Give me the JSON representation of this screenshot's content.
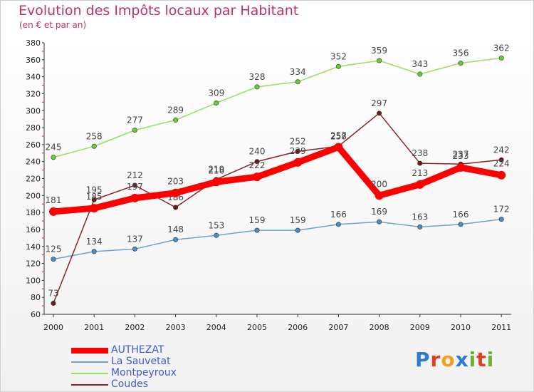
{
  "header": {
    "title": "Evolution des Impôts locaux par Habitant",
    "subtitle": "(en € et par an)"
  },
  "logo": {
    "text": "Proxiti",
    "colors": [
      "#2f7bd0",
      "#e04020",
      "#f0a020",
      "#2f7bd0",
      "#70b030",
      "#e04020",
      "#70b030"
    ]
  },
  "chart_data": {
    "type": "line",
    "title": "Evolution des Impôts locaux par Habitant",
    "subtitle": "(en € et par an)",
    "xlabel": "",
    "ylabel": "",
    "x": [
      "2000",
      "2001",
      "2002",
      "2003",
      "2004",
      "2005",
      "2006",
      "2007",
      "2008",
      "2009",
      "2010",
      "2011"
    ],
    "ylim": [
      60,
      380
    ],
    "yticks": [
      60,
      80,
      100,
      120,
      140,
      160,
      180,
      200,
      220,
      240,
      260,
      280,
      300,
      320,
      340,
      360,
      380
    ],
    "grid": false,
    "legend": "bottom-left",
    "series": [
      {
        "name": "Montpeyroux",
        "color": "#99dd66",
        "point_color": "#66cc33",
        "values": [
          245,
          258,
          277,
          289,
          309,
          328,
          334,
          352,
          359,
          343,
          356,
          362
        ]
      },
      {
        "name": "La Sauvetat",
        "color": "#6ea3cf",
        "point_color": "#4a8cc8",
        "values": [
          125,
          134,
          137,
          148,
          153,
          159,
          159,
          166,
          169,
          163,
          166,
          172
        ]
      },
      {
        "name": "Coudes",
        "color": "#8b2525",
        "point_color": "#6a1a1a",
        "values": [
          73,
          195,
          212,
          186,
          219,
          240,
          252,
          258,
          297,
          238,
          237,
          242
        ]
      },
      {
        "name": "AUTHEZAT",
        "color": "#ff0000",
        "point_color": "#ff0000",
        "values": [
          181,
          185,
          197,
          203,
          216,
          222,
          239,
          257,
          200,
          213,
          233,
          224
        ]
      }
    ]
  }
}
